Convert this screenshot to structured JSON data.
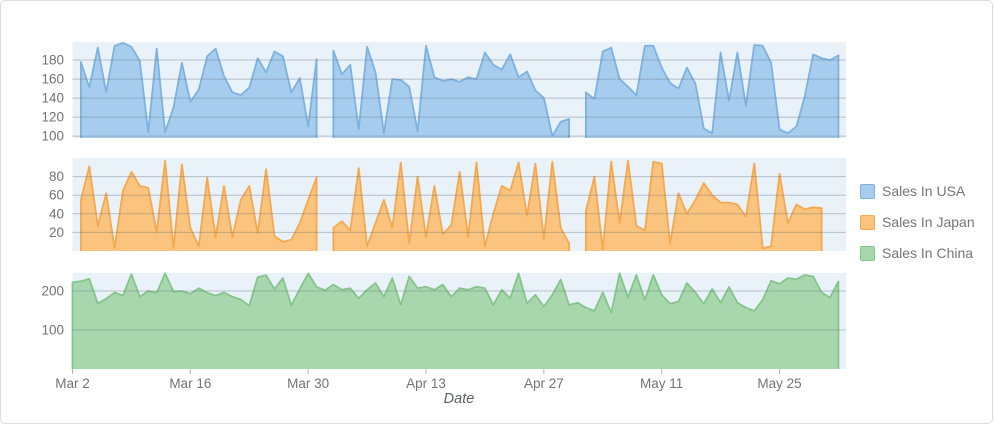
{
  "chart_data": {
    "type": "area",
    "title": "",
    "xlabel": "Date",
    "ylabel": "",
    "grid": true,
    "legend_position": "right",
    "layout": "three stacked area subplots sharing one date x-axis; top two series contain gaps (missing data) at Apr 1 and May 1",
    "x_unit": "daily values, day index measured from Mar 2",
    "x_total_days": 92,
    "x_ticks": [
      {
        "day": 0,
        "label": "Mar 2"
      },
      {
        "day": 14,
        "label": "Mar 16"
      },
      {
        "day": 28,
        "label": "Mar 30"
      },
      {
        "day": 42,
        "label": "Apr 13"
      },
      {
        "day": 56,
        "label": "Apr 27"
      },
      {
        "day": 70,
        "label": "May 11"
      },
      {
        "day": 84,
        "label": "May 25"
      }
    ],
    "plot_bg": "#e9f1f9",
    "grid_color": "rgba(100,112,128,0.38)",
    "tick_color": "#b5b5b5",
    "label_color": "#737373",
    "series": [
      {
        "name": "Sales In USA",
        "fill": "#a6cdee",
        "line": "#7db2e0",
        "y_ticks": [
          100,
          120,
          140,
          160,
          180
        ],
        "y_range": [
          98,
          199
        ],
        "values": [
          null,
          178,
          151,
          193,
          146,
          195,
          198,
          194,
          179,
          104,
          192,
          104,
          130,
          177,
          136,
          149,
          184,
          192,
          163,
          146,
          143,
          151,
          182,
          167,
          189,
          184,
          146,
          161,
          110,
          181,
          null,
          190,
          165,
          175,
          107,
          194,
          167,
          103,
          160,
          159,
          152,
          105,
          195,
          162,
          158,
          160,
          157,
          162,
          160,
          188,
          175,
          170,
          186,
          162,
          168,
          148,
          140,
          100,
          115,
          118,
          null,
          146,
          139,
          189,
          193,
          160,
          152,
          143,
          195,
          195,
          172,
          156,
          150,
          172,
          155,
          108,
          103,
          188,
          137,
          188,
          132,
          196,
          195,
          177,
          107,
          103,
          110,
          142,
          186,
          182,
          180,
          185
        ]
      },
      {
        "name": "Sales In Japan",
        "fill": "#fac37e",
        "line": "#f4a94e",
        "y_ticks": [
          20,
          40,
          60,
          80
        ],
        "y_range": [
          0,
          100
        ],
        "values": [
          null,
          55,
          91,
          27,
          62,
          3,
          65,
          85,
          70,
          68,
          20,
          97,
          3,
          93,
          25,
          5,
          79,
          15,
          70,
          15,
          55,
          70,
          19,
          88,
          16,
          10,
          12,
          30,
          55,
          79,
          null,
          25,
          32,
          22,
          89,
          5,
          30,
          55,
          25,
          95,
          8,
          80,
          15,
          70,
          18,
          28,
          85,
          15,
          95,
          5,
          40,
          70,
          65,
          95,
          38,
          94,
          13,
          96,
          25,
          8,
          null,
          43,
          80,
          2,
          96,
          30,
          97,
          27,
          22,
          96,
          94,
          8,
          62,
          40,
          55,
          73,
          60,
          52,
          52,
          50,
          37,
          94,
          3,
          5,
          83,
          30,
          50,
          45,
          47,
          46,
          null,
          null
        ]
      },
      {
        "name": "Sales In China",
        "fill": "#a9d7ad",
        "line": "#84c58b",
        "y_ticks": [
          100,
          200
        ],
        "y_range": [
          0,
          246
        ],
        "values": [
          222,
          225,
          231,
          168,
          180,
          196,
          188,
          243,
          185,
          200,
          195,
          245,
          198,
          200,
          193,
          207,
          195,
          188,
          196,
          185,
          178,
          162,
          235,
          240,
          205,
          233,
          163,
          205,
          245,
          210,
          202,
          216,
          203,
          207,
          181,
          203,
          220,
          185,
          233,
          164,
          237,
          207,
          211,
          203,
          216,
          185,
          207,
          203,
          211,
          207,
          164,
          203,
          181,
          245,
          168,
          190,
          160,
          190,
          229,
          164,
          170,
          157,
          149,
          196,
          144,
          245,
          183,
          241,
          177,
          241,
          190,
          167,
          173,
          220,
          196,
          167,
          205,
          170,
          210,
          170,
          157,
          149,
          177,
          226,
          218,
          233,
          230,
          241,
          237,
          196,
          183,
          224
        ]
      }
    ]
  },
  "legend": {
    "items": [
      {
        "label": "Sales In USA"
      },
      {
        "label": "Sales In Japan"
      },
      {
        "label": "Sales In China"
      }
    ]
  }
}
